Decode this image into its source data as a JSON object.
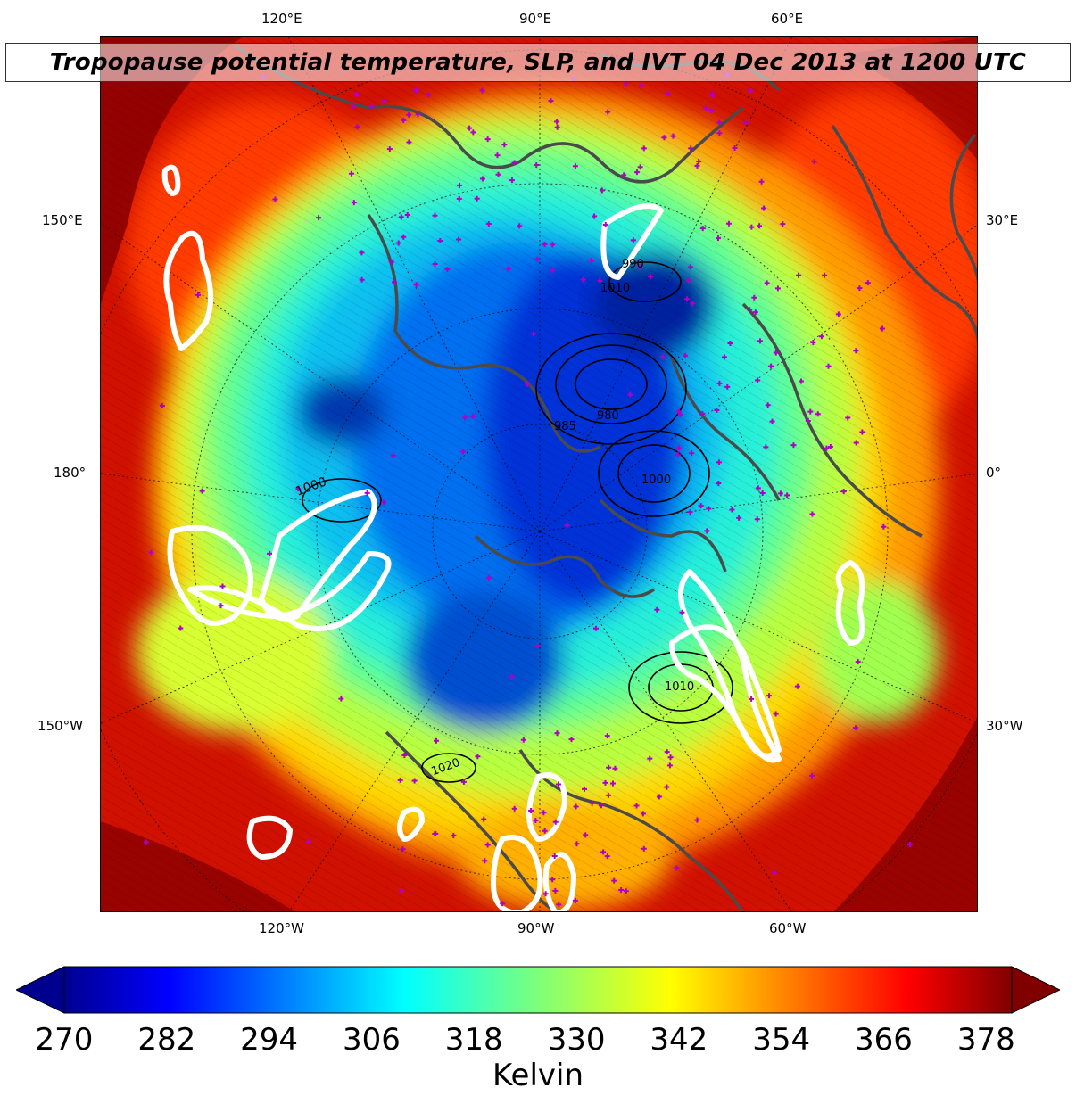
{
  "title": "Tropopause potential temperature, SLP, and IVT 04 Dec 2013 at 1200 UTC",
  "top_lon_labels": [
    "120°E",
    "90°E",
    "60°E"
  ],
  "bottom_lon_labels": [
    "120°W",
    "90°W",
    "60°W"
  ],
  "left_labels": [
    "150°E",
    "180°",
    "150°W"
  ],
  "right_labels": [
    "30°E",
    "0°",
    "30°W"
  ],
  "contour_labels": [
    "1000",
    "990",
    "1010",
    "985",
    "980",
    "1000",
    "1010",
    "1020"
  ],
  "colorbar": {
    "unit_label": "Kelvin",
    "ticks": [
      "270",
      "282",
      "294",
      "306",
      "318",
      "330",
      "342",
      "354",
      "366",
      "378"
    ],
    "min": 270,
    "max": 381,
    "extend": "both",
    "colormap": "jet"
  },
  "colors": {
    "deep_blue": "#00008f",
    "cyan": "#1ef0e0",
    "green": "#7dff7a",
    "yellow": "#ffe600",
    "orange": "#ff8c00",
    "red": "#ff2200",
    "dark_red": "#800000",
    "station_marker": "#b000c8",
    "ivt_contour": "#ffffff",
    "coastline": "#4a4a4a"
  }
}
